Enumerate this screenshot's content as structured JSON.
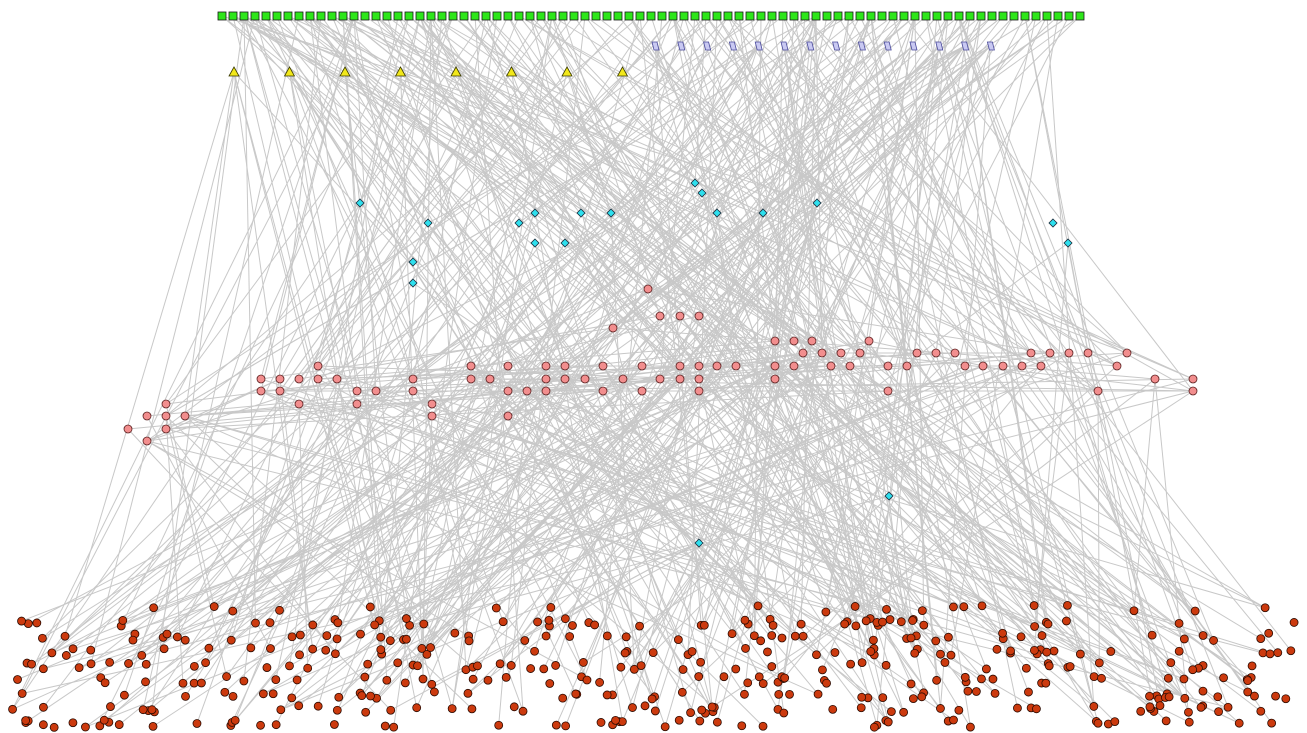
{
  "diagram": {
    "kind": "layered network graph",
    "legend": [],
    "node_groups": [
      {
        "key": "sources",
        "shape": "square",
        "color": "#2ee61a",
        "count": 79
      },
      {
        "key": "parallelograms",
        "shape": "parallelogram",
        "color": "#c9c9f2",
        "count": 14
      },
      {
        "key": "triangles",
        "shape": "triangle",
        "color": "#f2e81a",
        "count": 8
      },
      {
        "key": "diamonds",
        "shape": "diamond",
        "color": "#2ee0ee",
        "count": 21
      },
      {
        "key": "pink-circles",
        "shape": "circle",
        "color": "#f28e8e",
        "count": 102
      },
      {
        "key": "dark-circles",
        "shape": "circle",
        "color": "#cc3a0e",
        "count": 430
      }
    ],
    "edge_color": "#c8c8c8",
    "background": "#ffffff"
  }
}
